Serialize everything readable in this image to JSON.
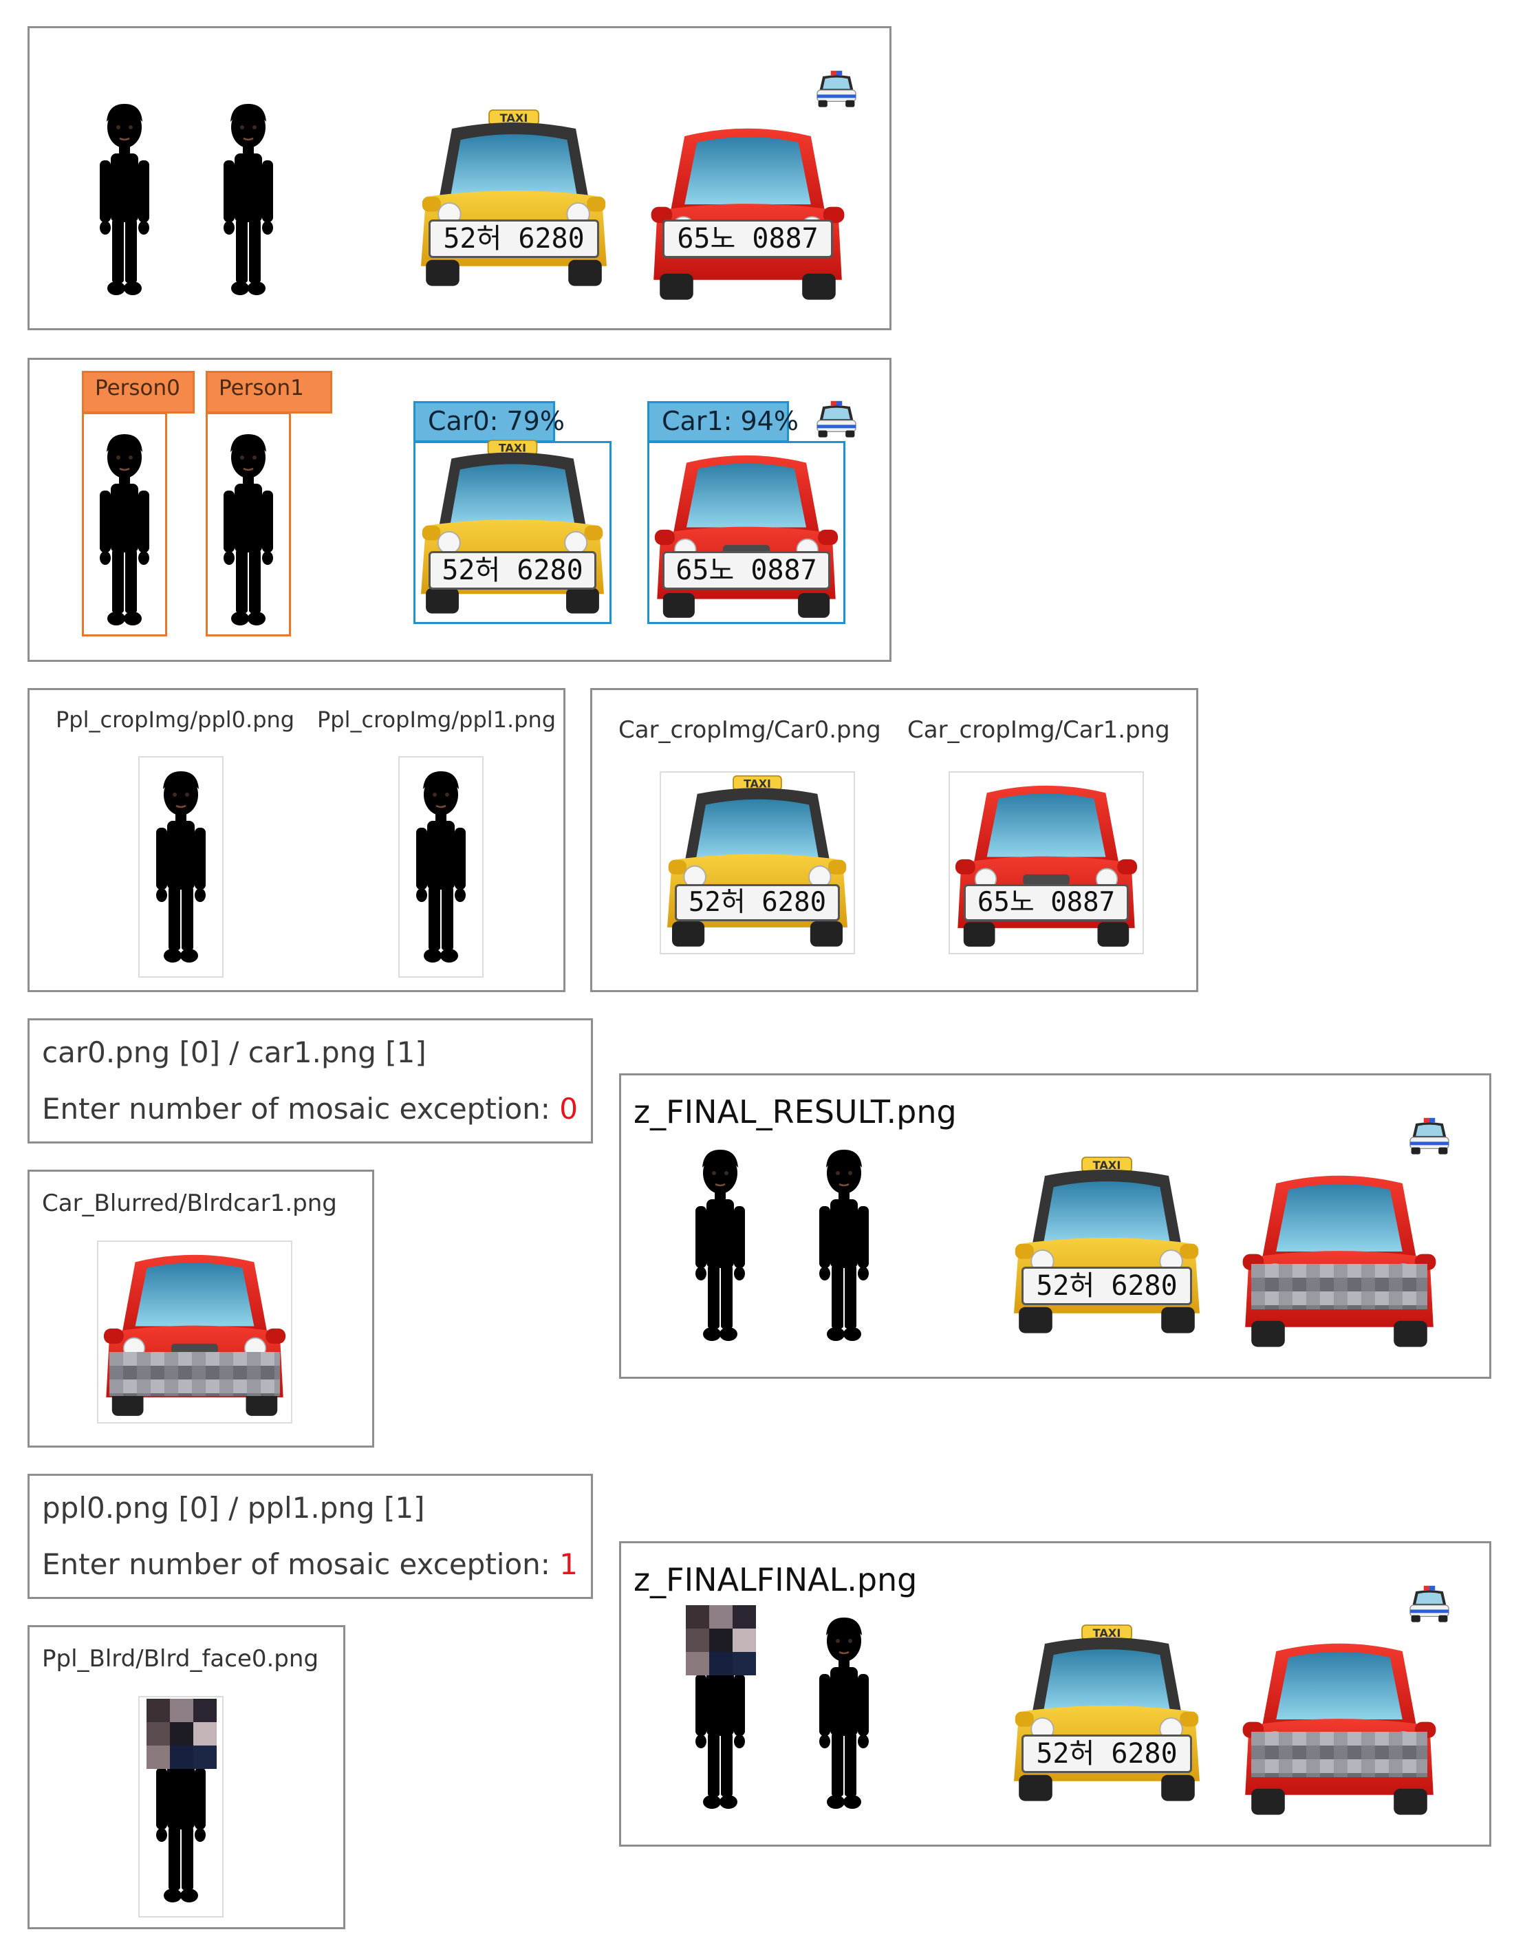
{
  "plates": {
    "taxi": "52허 6280",
    "red": "65노 0887"
  },
  "taxi_sign": "TAXI",
  "detections": {
    "person0": "Person0",
    "person1": "Person1",
    "car0": "Car0: 79%",
    "car1": "Car1: 94%"
  },
  "ppl_crops": {
    "a": "Ppl_cropImg/ppl0.png",
    "b": "Ppl_cropImg/ppl1.png"
  },
  "car_crops": {
    "a": "Car_cropImg/Car0.png",
    "b": "Car_cropImg/Car1.png"
  },
  "car_exception": {
    "list": "car0.png [0] / car1.png [1]",
    "prompt": "Enter number of mosaic exception: ",
    "value": "0"
  },
  "car_blurred": {
    "title": "Car_Blurred/Blrdcar1.png"
  },
  "final_result": {
    "title": "z_FINAL_RESULT.png"
  },
  "ppl_exception": {
    "list": "ppl0.png [0] / ppl1.png [1]",
    "prompt": "Enter number of mosaic exception: ",
    "value": "1"
  },
  "ppl_blurred": {
    "title": "Ppl_Blrd/Blrd_face0.png"
  },
  "final_final": {
    "title": "z_FINALFINAL.png"
  },
  "colors": {
    "person_box": "#e8772e",
    "car_box": "#1e93cf",
    "exception_value": "#e8131d",
    "panel_border": "#8e8e8e"
  },
  "icons": [
    "person-blond-icon",
    "person-man-icon",
    "taxi-icon",
    "red-car-icon",
    "police-car-icon"
  ]
}
